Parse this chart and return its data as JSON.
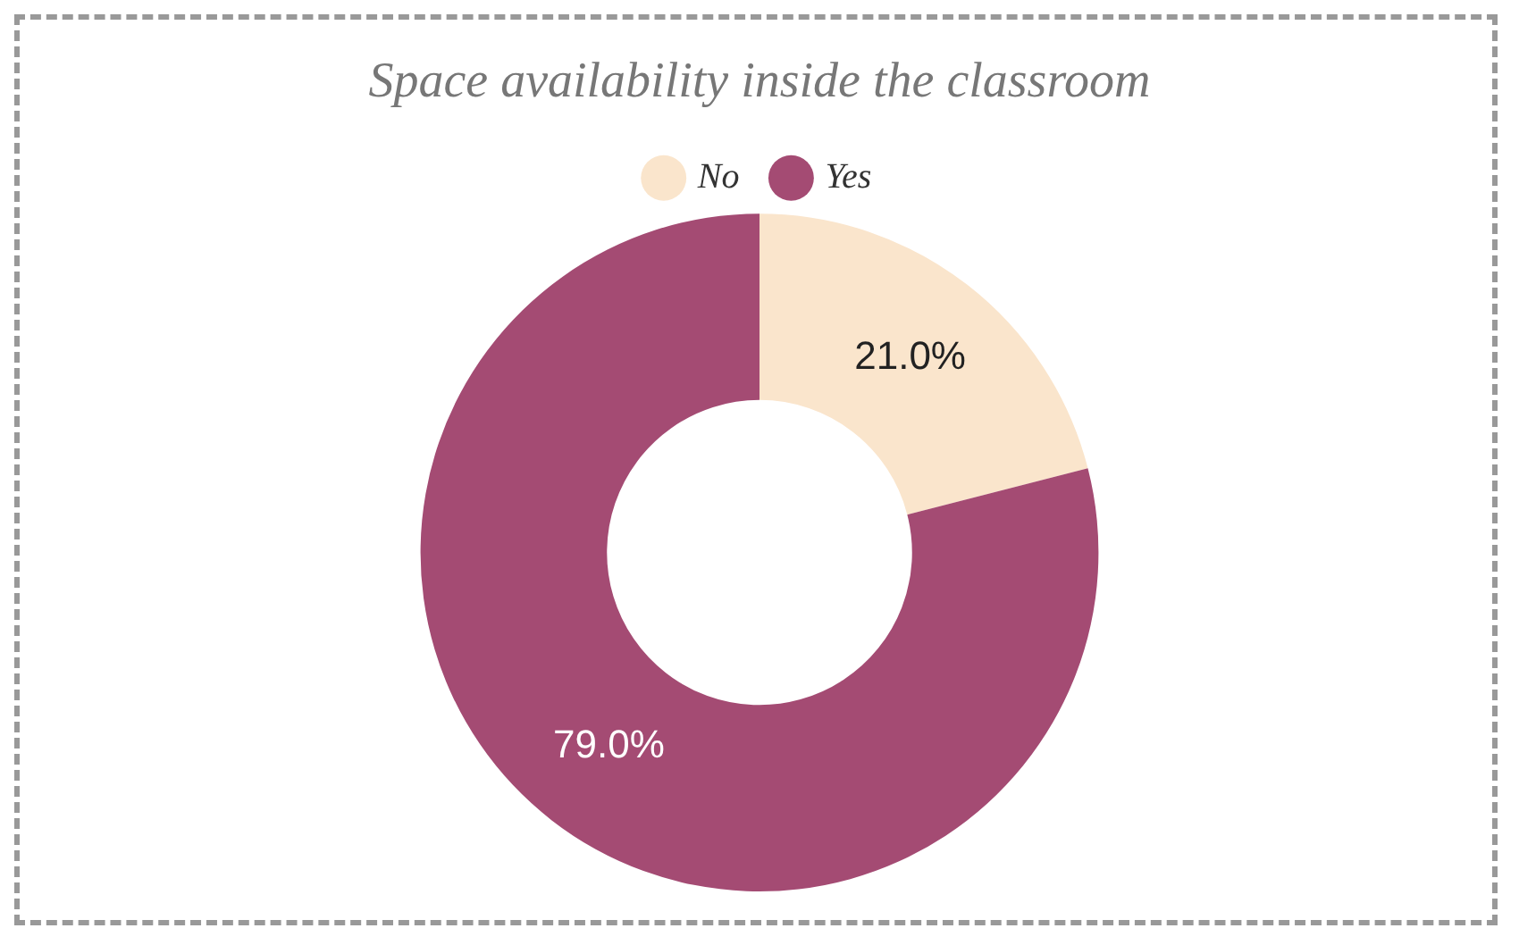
{
  "chart_data": {
    "type": "donut",
    "title": "Space availability inside the classroom",
    "categories": [
      "No",
      "Yes"
    ],
    "values": [
      21.0,
      79.0
    ],
    "colors": [
      "#fae5cc",
      "#a44b73"
    ],
    "value_labels": [
      "21.0%",
      "79.0%"
    ],
    "legend": "top"
  }
}
